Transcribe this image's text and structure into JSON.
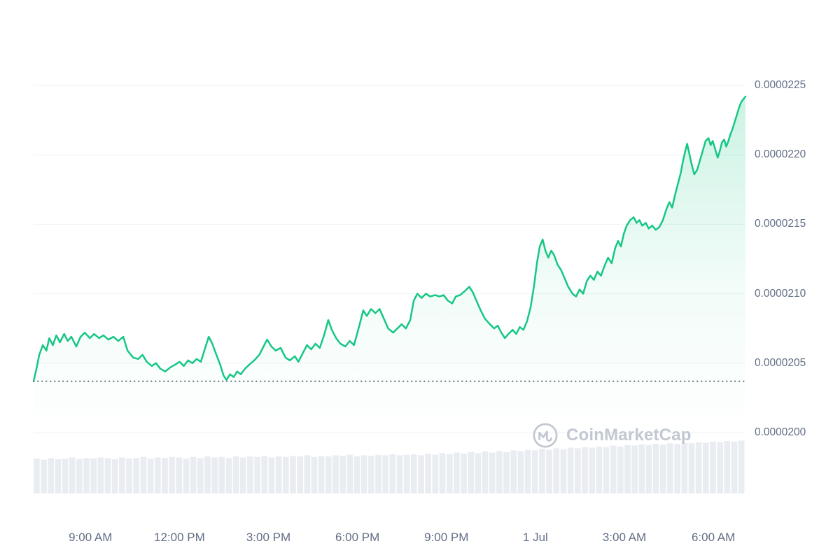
{
  "watermark": {
    "text": "CoinMarketCap"
  },
  "colors": {
    "line": "#16c784",
    "area_top": "rgba(22,199,132,0.22)",
    "area_mid": "rgba(22,199,132,0.06)",
    "area_bottom": "rgba(22,199,132,0)",
    "grid": "#eff2f5",
    "axis_label": "#616e85",
    "volume_bar": "#e9edf2",
    "previous_close": "#666e7e",
    "watermark": "#c2c8d1"
  },
  "chart_data": {
    "type": "area",
    "title": "",
    "legend": false,
    "grid": "horizontal",
    "price_unit_multiplier": 1e-07,
    "y_axis": {
      "side": "right",
      "ticks": [
        {
          "label": "0.0000225",
          "value": 225
        },
        {
          "label": "0.0000220",
          "value": 220
        },
        {
          "label": "0.0000215",
          "value": 215
        },
        {
          "label": "0.0000210",
          "value": 210
        },
        {
          "label": "0.0000205",
          "value": 205
        },
        {
          "label": "0.0000200",
          "value": 200
        }
      ]
    },
    "x_axis": {
      "ticks": [
        {
          "label": "9:00 AM",
          "t": 0.0799
        },
        {
          "label": "12:00 PM",
          "t": 0.2049
        },
        {
          "label": "3:00 PM",
          "t": 0.3299
        },
        {
          "label": "6:00 PM",
          "t": 0.4549
        },
        {
          "label": "9:00 PM",
          "t": 0.5799
        },
        {
          "label": "1 Jul",
          "t": 0.7049
        },
        {
          "label": "3:00 AM",
          "t": 0.8299
        },
        {
          "label": "6:00 AM",
          "t": 0.9549
        }
      ]
    },
    "previous_close": {
      "value": 203.7
    },
    "series": [
      {
        "name": "price",
        "points": [
          [
            0.0,
            203.7
          ],
          [
            0.004,
            204.6
          ],
          [
            0.008,
            205.6
          ],
          [
            0.013,
            206.3
          ],
          [
            0.018,
            205.9
          ],
          [
            0.022,
            206.8
          ],
          [
            0.027,
            206.3
          ],
          [
            0.032,
            207.0
          ],
          [
            0.037,
            206.5
          ],
          [
            0.043,
            207.1
          ],
          [
            0.048,
            206.6
          ],
          [
            0.053,
            206.9
          ],
          [
            0.06,
            206.2
          ],
          [
            0.066,
            206.9
          ],
          [
            0.072,
            207.2
          ],
          [
            0.079,
            206.8
          ],
          [
            0.085,
            207.1
          ],
          [
            0.092,
            206.8
          ],
          [
            0.098,
            207.0
          ],
          [
            0.105,
            206.7
          ],
          [
            0.112,
            206.9
          ],
          [
            0.119,
            206.6
          ],
          [
            0.126,
            206.9
          ],
          [
            0.132,
            205.9
          ],
          [
            0.14,
            205.4
          ],
          [
            0.147,
            205.3
          ],
          [
            0.153,
            205.6
          ],
          [
            0.159,
            205.1
          ],
          [
            0.166,
            204.8
          ],
          [
            0.172,
            205.0
          ],
          [
            0.178,
            204.6
          ],
          [
            0.185,
            204.4
          ],
          [
            0.192,
            204.7
          ],
          [
            0.199,
            204.9
          ],
          [
            0.205,
            205.1
          ],
          [
            0.211,
            204.8
          ],
          [
            0.217,
            205.2
          ],
          [
            0.223,
            205.0
          ],
          [
            0.229,
            205.3
          ],
          [
            0.235,
            205.1
          ],
          [
            0.241,
            206.1
          ],
          [
            0.246,
            206.9
          ],
          [
            0.251,
            206.4
          ],
          [
            0.256,
            205.7
          ],
          [
            0.262,
            204.9
          ],
          [
            0.267,
            204.1
          ],
          [
            0.271,
            203.8
          ],
          [
            0.276,
            204.2
          ],
          [
            0.281,
            204.0
          ],
          [
            0.286,
            204.4
          ],
          [
            0.291,
            204.2
          ],
          [
            0.297,
            204.6
          ],
          [
            0.303,
            204.9
          ],
          [
            0.31,
            205.2
          ],
          [
            0.317,
            205.6
          ],
          [
            0.323,
            206.2
          ],
          [
            0.328,
            206.7
          ],
          [
            0.334,
            206.2
          ],
          [
            0.34,
            205.9
          ],
          [
            0.347,
            206.1
          ],
          [
            0.354,
            205.4
          ],
          [
            0.36,
            205.2
          ],
          [
            0.367,
            205.5
          ],
          [
            0.372,
            205.1
          ],
          [
            0.378,
            205.7
          ],
          [
            0.384,
            206.3
          ],
          [
            0.39,
            206.0
          ],
          [
            0.396,
            206.4
          ],
          [
            0.402,
            206.1
          ],
          [
            0.408,
            207.0
          ],
          [
            0.414,
            208.1
          ],
          [
            0.419,
            207.4
          ],
          [
            0.425,
            206.8
          ],
          [
            0.431,
            206.4
          ],
          [
            0.438,
            206.2
          ],
          [
            0.444,
            206.6
          ],
          [
            0.45,
            206.3
          ],
          [
            0.457,
            207.6
          ],
          [
            0.463,
            208.8
          ],
          [
            0.468,
            208.4
          ],
          [
            0.474,
            208.9
          ],
          [
            0.48,
            208.6
          ],
          [
            0.486,
            208.9
          ],
          [
            0.492,
            208.2
          ],
          [
            0.498,
            207.5
          ],
          [
            0.505,
            207.2
          ],
          [
            0.511,
            207.5
          ],
          [
            0.517,
            207.8
          ],
          [
            0.523,
            207.5
          ],
          [
            0.529,
            208.1
          ],
          [
            0.534,
            209.5
          ],
          [
            0.539,
            210.0
          ],
          [
            0.545,
            209.7
          ],
          [
            0.551,
            210.0
          ],
          [
            0.557,
            209.8
          ],
          [
            0.564,
            209.9
          ],
          [
            0.57,
            209.8
          ],
          [
            0.576,
            209.9
          ],
          [
            0.582,
            209.5
          ],
          [
            0.588,
            209.3
          ],
          [
            0.593,
            209.8
          ],
          [
            0.599,
            209.9
          ],
          [
            0.606,
            210.2
          ],
          [
            0.612,
            210.5
          ],
          [
            0.617,
            210.1
          ],
          [
            0.622,
            209.5
          ],
          [
            0.628,
            208.8
          ],
          [
            0.634,
            208.2
          ],
          [
            0.641,
            207.8
          ],
          [
            0.647,
            207.5
          ],
          [
            0.652,
            207.7
          ],
          [
            0.657,
            207.2
          ],
          [
            0.662,
            206.8
          ],
          [
            0.667,
            207.1
          ],
          [
            0.673,
            207.4
          ],
          [
            0.678,
            207.1
          ],
          [
            0.683,
            207.6
          ],
          [
            0.688,
            207.4
          ],
          [
            0.693,
            208.0
          ],
          [
            0.698,
            209.0
          ],
          [
            0.703,
            210.6
          ],
          [
            0.707,
            212.2
          ],
          [
            0.711,
            213.4
          ],
          [
            0.715,
            213.9
          ],
          [
            0.719,
            213.1
          ],
          [
            0.723,
            212.6
          ],
          [
            0.727,
            213.1
          ],
          [
            0.731,
            212.8
          ],
          [
            0.736,
            212.1
          ],
          [
            0.741,
            211.7
          ],
          [
            0.746,
            211.1
          ],
          [
            0.751,
            210.5
          ],
          [
            0.757,
            210.0
          ],
          [
            0.762,
            209.8
          ],
          [
            0.767,
            210.3
          ],
          [
            0.772,
            210.0
          ],
          [
            0.777,
            210.9
          ],
          [
            0.782,
            211.3
          ],
          [
            0.787,
            211.0
          ],
          [
            0.792,
            211.6
          ],
          [
            0.797,
            211.3
          ],
          [
            0.802,
            212.0
          ],
          [
            0.807,
            212.6
          ],
          [
            0.812,
            212.2
          ],
          [
            0.817,
            213.3
          ],
          [
            0.821,
            213.8
          ],
          [
            0.825,
            213.4
          ],
          [
            0.829,
            214.3
          ],
          [
            0.833,
            214.9
          ],
          [
            0.838,
            215.3
          ],
          [
            0.843,
            215.5
          ],
          [
            0.847,
            215.1
          ],
          [
            0.851,
            215.3
          ],
          [
            0.855,
            214.9
          ],
          [
            0.86,
            215.1
          ],
          [
            0.864,
            214.7
          ],
          [
            0.869,
            214.9
          ],
          [
            0.874,
            214.6
          ],
          [
            0.879,
            214.8
          ],
          [
            0.884,
            215.3
          ],
          [
            0.889,
            216.1
          ],
          [
            0.893,
            216.6
          ],
          [
            0.897,
            216.2
          ],
          [
            0.901,
            217.1
          ],
          [
            0.905,
            217.9
          ],
          [
            0.909,
            218.7
          ],
          [
            0.912,
            219.5
          ],
          [
            0.915,
            220.2
          ],
          [
            0.918,
            220.8
          ],
          [
            0.921,
            220.1
          ],
          [
            0.924,
            219.4
          ],
          [
            0.928,
            218.6
          ],
          [
            0.932,
            218.9
          ],
          [
            0.936,
            219.6
          ],
          [
            0.94,
            220.3
          ],
          [
            0.944,
            221.0
          ],
          [
            0.948,
            221.2
          ],
          [
            0.951,
            220.7
          ],
          [
            0.954,
            221.0
          ],
          [
            0.958,
            220.3
          ],
          [
            0.961,
            219.8
          ],
          [
            0.964,
            220.3
          ],
          [
            0.967,
            220.9
          ],
          [
            0.97,
            221.1
          ],
          [
            0.973,
            220.6
          ],
          [
            0.976,
            221.0
          ],
          [
            0.979,
            221.5
          ],
          [
            0.982,
            221.9
          ],
          [
            0.985,
            222.4
          ],
          [
            0.988,
            222.9
          ],
          [
            0.991,
            223.4
          ],
          [
            0.994,
            223.8
          ],
          [
            0.997,
            224.0
          ],
          [
            1.0,
            224.2
          ]
        ]
      }
    ],
    "volume_normalized": [
      0.64,
      0.62,
      0.65,
      0.63,
      0.64,
      0.66,
      0.63,
      0.65,
      0.64,
      0.66,
      0.65,
      0.63,
      0.66,
      0.64,
      0.65,
      0.67,
      0.64,
      0.66,
      0.65,
      0.67,
      0.66,
      0.64,
      0.67,
      0.65,
      0.68,
      0.66,
      0.67,
      0.65,
      0.68,
      0.66,
      0.68,
      0.67,
      0.69,
      0.66,
      0.68,
      0.67,
      0.69,
      0.68,
      0.7,
      0.67,
      0.69,
      0.68,
      0.7,
      0.69,
      0.71,
      0.68,
      0.7,
      0.69,
      0.71,
      0.7,
      0.72,
      0.7,
      0.71,
      0.72,
      0.7,
      0.73,
      0.71,
      0.74,
      0.72,
      0.75,
      0.73,
      0.76,
      0.74,
      0.77,
      0.75,
      0.78,
      0.76,
      0.79,
      0.78,
      0.8,
      0.79,
      0.82,
      0.8,
      0.83,
      0.81,
      0.84,
      0.83,
      0.85,
      0.84,
      0.86,
      0.85,
      0.88,
      0.86,
      0.89,
      0.88,
      0.9,
      0.89,
      0.91,
      0.9,
      0.92,
      0.91,
      0.93,
      0.92,
      0.94,
      0.93,
      0.95,
      0.94,
      0.96,
      0.95,
      0.97
    ]
  }
}
